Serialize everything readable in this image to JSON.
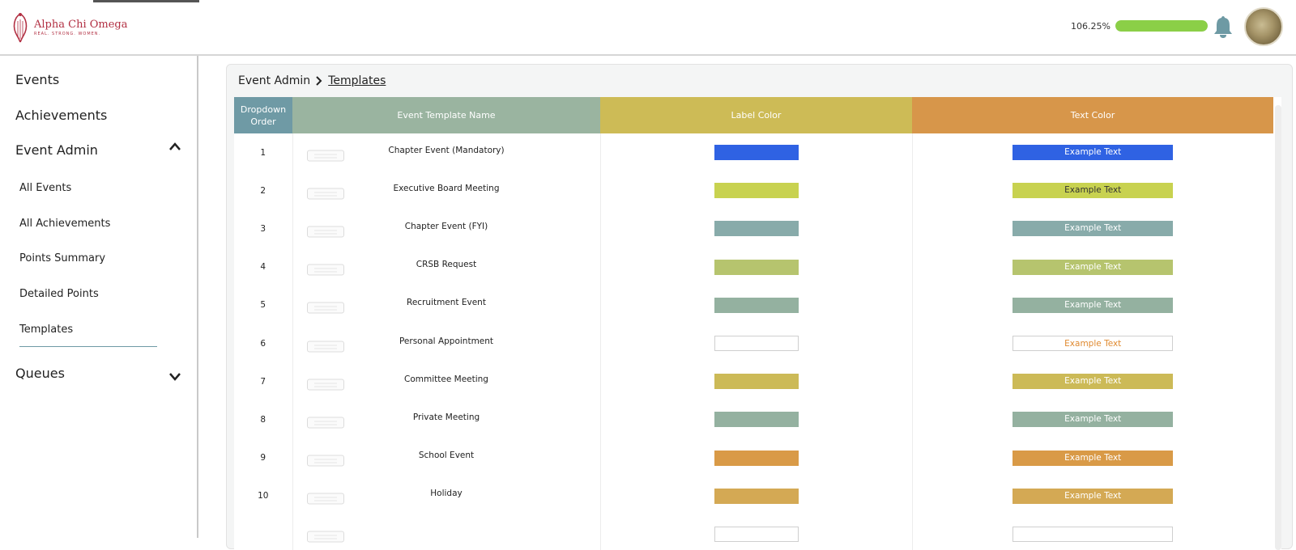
{
  "logo": {
    "name": "Alpha Chi Omega",
    "tagline": "REAL. STRONG. WOMEN."
  },
  "header": {
    "progress_label": "106.25%",
    "progress_fraction": 1.0
  },
  "sidebar": {
    "events": "Events",
    "achievements": "Achievements",
    "event_admin": "Event Admin",
    "sub_items": [
      "All Events",
      "All Achievements",
      "Points Summary",
      "Detailed Points",
      "Templates"
    ],
    "queues": "Queues"
  },
  "breadcrumb": {
    "parent": "Event Admin",
    "current": "Templates"
  },
  "table": {
    "columns": {
      "order": "Dropdown Order",
      "name": "Event Template Name",
      "label_color": "Label Color",
      "text_color": "Text Color"
    },
    "example_text": "Example Text",
    "rows": [
      {
        "order": "1",
        "name": "Chapter Event (Mandatory)",
        "color": "#2f62e3",
        "text_color": "#ffffff"
      },
      {
        "order": "2",
        "name": "Executive Board Meeting",
        "color": "#c8d250",
        "text_color": "#333333"
      },
      {
        "order": "3",
        "name": "Chapter Event (FYI)",
        "color": "#88abaa",
        "text_color": "#ffffff"
      },
      {
        "order": "4",
        "name": "CRSB Request",
        "color": "#b6c46e",
        "text_color": "#ffffff"
      },
      {
        "order": "5",
        "name": "Recruitment Event",
        "color": "#94b1a0",
        "text_color": "#ffffff"
      },
      {
        "order": "6",
        "name": "Personal Appointment",
        "color": "#ffffff",
        "text_color": "#e08a30"
      },
      {
        "order": "7",
        "name": "Committee Meeting",
        "color": "#ccba57",
        "text_color": "#ffffff"
      },
      {
        "order": "8",
        "name": "Private Meeting",
        "color": "#94b1a0",
        "text_color": "#ffffff"
      },
      {
        "order": "9",
        "name": "School Event",
        "color": "#d99a47",
        "text_color": "#ffffff"
      },
      {
        "order": "10",
        "name": "Holiday",
        "color": "#d4a954",
        "text_color": "#ffffff"
      },
      {
        "order": "",
        "name": "",
        "color": "#ffffff",
        "text_color": "#ffffff"
      }
    ]
  },
  "colors": {
    "brand": "#b23043",
    "sidebar_active_underline": "#6f9aa5",
    "progress_fill": "#8bcf47",
    "bell": "#6e9aa4"
  }
}
